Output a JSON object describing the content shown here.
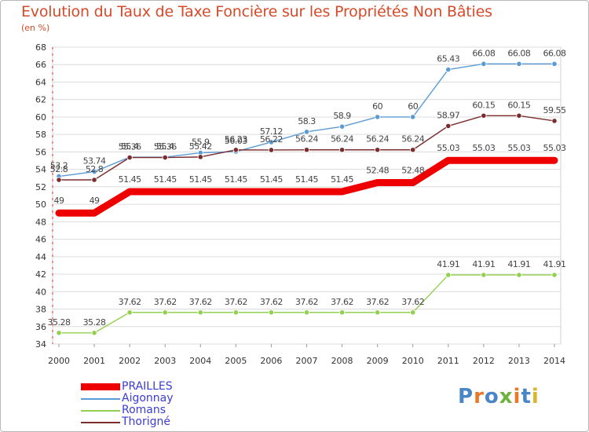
{
  "chart_data": {
    "type": "line",
    "title": "Evolution du Taux de Taxe Foncière sur les Propriétés Non Bâties",
    "subtitle": "(en %)",
    "x": [
      "2000",
      "2001",
      "2002",
      "2003",
      "2004",
      "2005",
      "2006",
      "2007",
      "2008",
      "2009",
      "2010",
      "2011",
      "2012",
      "2013",
      "2014"
    ],
    "ylim": [
      34,
      68
    ],
    "yticks": [
      34,
      36,
      38,
      40,
      42,
      44,
      46,
      48,
      50,
      52,
      54,
      56,
      58,
      60,
      62,
      64,
      66,
      68
    ],
    "grid": "horizontal",
    "legend_placement": "bottom-left",
    "series": [
      {
        "name": "PRAILLES",
        "color": "#ee0000",
        "values": [
          49,
          49,
          51.45,
          51.45,
          51.45,
          51.45,
          51.45,
          51.45,
          51.45,
          52.48,
          52.48,
          55.03,
          55.03,
          55.03,
          55.03
        ],
        "labels": [
          "49",
          "49",
          "51.45",
          "51.45",
          "51.45",
          "51.45",
          "51.45",
          "51.45",
          "51.45",
          "52.48",
          "52.48",
          "55.03",
          "55.03",
          "55.03",
          "55.03"
        ]
      },
      {
        "name": "Aigonnay",
        "color": "#5b9bd5",
        "values": [
          53.2,
          53.74,
          55.4,
          55.4,
          55.9,
          56.03,
          57.12,
          58.3,
          58.9,
          60,
          60,
          65.43,
          66.08,
          66.08,
          66.08
        ],
        "labels": [
          "53.2",
          "53.74",
          "55.4",
          "55.4",
          "55.9",
          "56.03",
          "57.12",
          "58.3",
          "58.9",
          "60",
          "60",
          "65.43",
          "66.08",
          "66.08",
          "66.08"
        ]
      },
      {
        "name": "Romans",
        "color": "#92d050",
        "values": [
          35.28,
          35.28,
          37.62,
          37.62,
          37.62,
          37.62,
          37.62,
          37.62,
          37.62,
          37.62,
          37.62,
          41.91,
          41.91,
          41.91,
          41.91
        ],
        "labels": [
          "35.28",
          "35.28",
          "37.62",
          "37.62",
          "37.62",
          "37.62",
          "37.62",
          "37.62",
          "37.62",
          "37.62",
          "37.62",
          "41.91",
          "41.91",
          "41.91",
          "41.91"
        ]
      },
      {
        "name": "Thorigné",
        "color": "#7b2c2c",
        "values": [
          52.8,
          52.8,
          55.36,
          55.36,
          55.42,
          56.23,
          56.22,
          56.24,
          56.24,
          56.24,
          56.24,
          58.97,
          60.15,
          60.15,
          59.55
        ],
        "labels": [
          "52.8",
          "52.8",
          "55.36",
          "55.36",
          "55.42",
          "56.23",
          "56.22",
          "56.24",
          "56.24",
          "56.24",
          "56.24",
          "58.97",
          "60.15",
          "60.15",
          "59.55"
        ]
      }
    ]
  },
  "logo": {
    "text": "Proxiti",
    "colors": [
      "#4a86c5",
      "#e8792b",
      "#4a86c5",
      "#6fb33f",
      "#e8792b",
      "#4a86c5",
      "#d8b52b"
    ]
  }
}
